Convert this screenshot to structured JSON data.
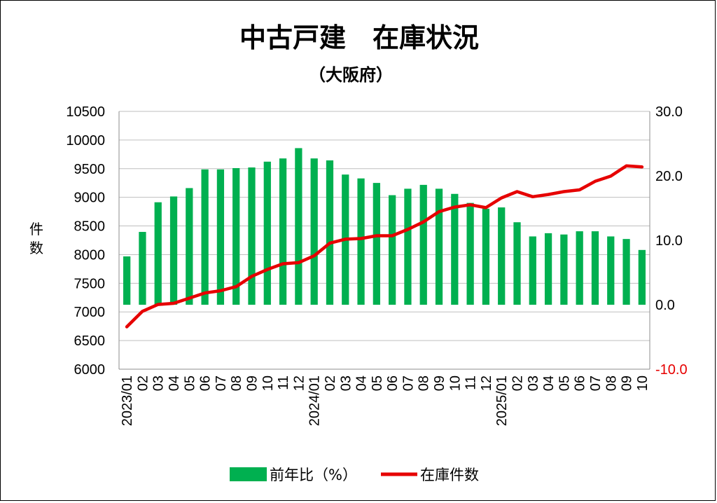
{
  "chart_data": {
    "type": "bar+line",
    "title": "中古戸建　在庫状況",
    "subtitle": "（大阪府）",
    "ylabel_left": "件数",
    "y_left": {
      "min": 6000,
      "max": 10500,
      "step": 500,
      "ticks": [
        "10500",
        "10000",
        "9500",
        "9000",
        "8500",
        "8000",
        "7500",
        "7000",
        "6500",
        "6000"
      ]
    },
    "y_right": {
      "min": -10,
      "max": 30,
      "step": 10,
      "ticks": [
        "30.0",
        "20.0",
        "10.0",
        "0.0",
        "-10.0"
      ]
    },
    "categories": [
      "2023/01",
      "02",
      "03",
      "04",
      "05",
      "06",
      "07",
      "08",
      "09",
      "10",
      "11",
      "12",
      "2024/01",
      "02",
      "03",
      "04",
      "05",
      "06",
      "07",
      "08",
      "09",
      "10",
      "11",
      "12",
      "2025/01",
      "02",
      "03",
      "04",
      "05",
      "06",
      "07",
      "08",
      "09",
      "10"
    ],
    "series": [
      {
        "name": "前年比（%）",
        "type": "bar",
        "axis": "right",
        "color": "#00b050",
        "values": [
          7.5,
          11.3,
          15.9,
          16.8,
          18.1,
          21.0,
          21.0,
          21.2,
          21.3,
          22.2,
          22.7,
          24.3,
          22.7,
          22.4,
          20.2,
          19.6,
          18.9,
          17.0,
          18.0,
          18.6,
          18.0,
          17.2,
          15.8,
          14.9,
          15.1,
          12.8,
          10.6,
          11.1,
          10.9,
          11.4,
          11.4,
          10.6,
          10.2,
          8.5
        ]
      },
      {
        "name": "在庫件数",
        "type": "line",
        "axis": "left",
        "color": "#e60000",
        "values": [
          6740,
          7010,
          7130,
          7150,
          7240,
          7330,
          7370,
          7440,
          7620,
          7740,
          7840,
          7860,
          7980,
          8200,
          8270,
          8280,
          8330,
          8330,
          8440,
          8570,
          8750,
          8830,
          8870,
          8820,
          8990,
          9100,
          9010,
          9050,
          9100,
          9130,
          9280,
          9370,
          9550,
          9530
        ]
      }
    ],
    "legend": [
      "前年比（%）",
      "在庫件数"
    ],
    "legend_position": "bottom",
    "grid": "horizontal"
  }
}
